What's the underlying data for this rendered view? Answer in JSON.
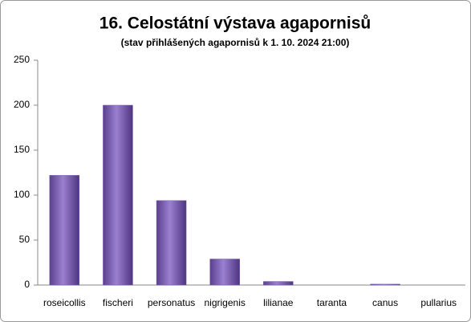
{
  "chart_data": {
    "type": "bar",
    "title": "16. Celostátní výstava agapornisů",
    "subtitle": "(stav přihlášených agapornisů k 1. 10. 2024 21:00)",
    "categories": [
      "roseicollis",
      "fischeri",
      "personatus",
      "nigrigenis",
      "lilianae",
      "taranta",
      "canus",
      "pullarius"
    ],
    "values": [
      122,
      200,
      94,
      29,
      4,
      0,
      1,
      0
    ],
    "color": "#7b5fb0",
    "ylim": [
      0,
      250
    ],
    "yticks": [
      0,
      50,
      100,
      150,
      200,
      250
    ],
    "grid": false
  }
}
